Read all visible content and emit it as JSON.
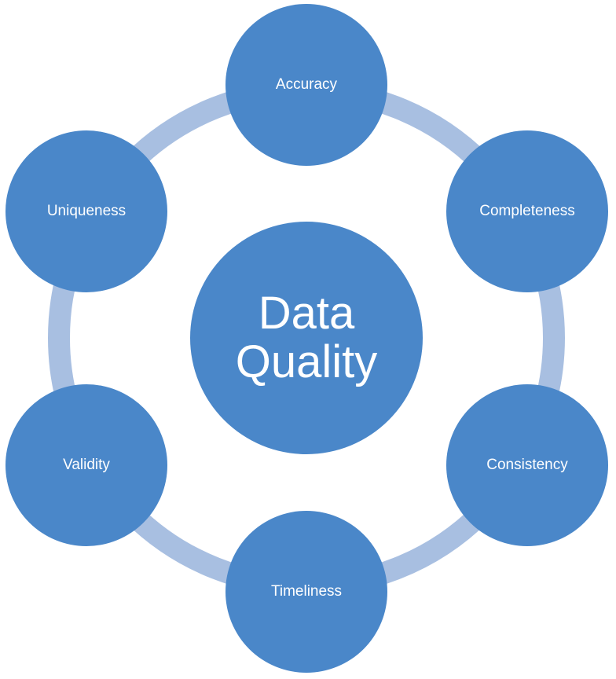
{
  "colors": {
    "node_fill": "#4a87c9",
    "ring": "#a8bfe1",
    "text": "#ffffff"
  },
  "center": {
    "label": "Data Quality"
  },
  "nodes": [
    {
      "label": "Accuracy"
    },
    {
      "label": "Completeness"
    },
    {
      "label": "Consistency"
    },
    {
      "label": "Timeliness"
    },
    {
      "label": "Validity"
    },
    {
      "label": "Uniqueness"
    }
  ]
}
